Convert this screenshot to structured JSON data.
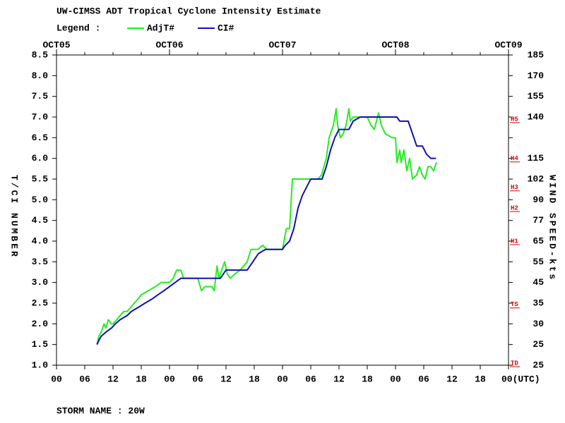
{
  "chart_data": {
    "type": "line",
    "title": "UW-CIMSS ADT Tropical Cyclone Intensity Estimate",
    "legend_label": "Legend :",
    "ylabel": "T/CI NUMBER",
    "y2label": "WIND SPEED-kts",
    "footer": "STORM NAME : 20W",
    "xlim": [
      0,
      96
    ],
    "xticks": [
      {
        "value": 0,
        "label": "00"
      },
      {
        "value": 6,
        "label": "06"
      },
      12,
      18,
      {
        "value": 24,
        "label": "00"
      },
      {
        "value": 30,
        "label": "06"
      },
      {
        "value": 36,
        "label": "12"
      },
      {
        "value": 42,
        "label": "18"
      },
      {
        "value": 48,
        "label": "00"
      },
      {
        "value": 54,
        "label": "06"
      },
      {
        "value": 60,
        "label": "12"
      },
      {
        "value": 66,
        "label": "18"
      },
      {
        "value": 72,
        "label": "00"
      },
      {
        "value": 78,
        "label": "06"
      },
      {
        "value": 84,
        "label": "12"
      },
      {
        "value": 90,
        "label": "18"
      },
      {
        "value": 96,
        "label": "00(UTC)"
      }
    ],
    "top_ticks": [
      {
        "value": 0,
        "label": "OCT05"
      },
      {
        "value": 24,
        "label": "OCT06"
      },
      {
        "value": 48,
        "label": "OCT07"
      },
      {
        "value": 72,
        "label": "OCT08"
      },
      {
        "value": 96,
        "label": "OCT09"
      }
    ],
    "ylim": [
      1.0,
      8.5
    ],
    "yticks": [
      {
        "value": 1.0,
        "label": "1.0"
      },
      1.5,
      {
        "value": 2.0,
        "label": "2.0"
      },
      2.5,
      {
        "value": 3.0,
        "label": "3.0"
      },
      3.5,
      {
        "value": 4.0,
        "label": "4.0"
      },
      4.5,
      {
        "value": 5.0,
        "label": "5.0"
      },
      5.5,
      {
        "value": 6.0,
        "label": "6.0"
      },
      6.5,
      {
        "value": 7.0,
        "label": "7.0"
      },
      7.5,
      {
        "value": 8.0,
        "label": "8.0"
      },
      8.5
    ],
    "wind_labels": [
      25,
      25,
      30,
      35,
      45,
      55,
      65,
      77,
      90,
      102,
      115,
      null,
      140,
      155,
      170,
      185
    ],
    "category_marks": [
      {
        "label": "TD",
        "value": 1.05
      },
      {
        "label": "TS",
        "value": 2.47
      },
      {
        "label": "H1",
        "value": 4.0
      },
      {
        "label": "H2",
        "value": 4.8
      },
      {
        "label": "H3",
        "value": 5.3
      },
      {
        "label": "H4",
        "value": 6.0
      },
      {
        "label": "H5",
        "value": 6.95
      }
    ],
    "series": [
      {
        "name": "AdjT#",
        "color": "#22ee22",
        "x": [
          8.6,
          9.0,
          9.5,
          10.1,
          10.5,
          11.0,
          11.6,
          12.0,
          12.8,
          13.5,
          14.3,
          15.0,
          15.8,
          16.5,
          17.3,
          18.0,
          19.5,
          21.0,
          22.2,
          24.0,
          24.8,
          25.5,
          26.4,
          27.0,
          27.8,
          30.0,
          30.8,
          31.5,
          33.0,
          33.5,
          34.1,
          34.5,
          35.1,
          35.7,
          36.3,
          36.9,
          37.8,
          39.0,
          40.5,
          41.3,
          42.8,
          43.8,
          44.7,
          48.0,
          48.8,
          49.5,
          50.1,
          52.5,
          55.5,
          56.3,
          57.3,
          57.9,
          58.8,
          59.4,
          59.7,
          60.3,
          60.9,
          61.5,
          62.1,
          62.4,
          63.0,
          66.0,
          66.8,
          67.5,
          68.4,
          69.0,
          69.8,
          71.3,
          72.0,
          72.3,
          72.9,
          73.2,
          73.8,
          74.4,
          75.0,
          75.6,
          76.5,
          77.1,
          77.7,
          78.3,
          78.9,
          79.5,
          80.1,
          80.7
        ],
        "values": [
          1.5,
          1.7,
          1.8,
          2.0,
          1.9,
          2.1,
          2.0,
          2.0,
          2.1,
          2.2,
          2.3,
          2.3,
          2.4,
          2.5,
          2.6,
          2.7,
          2.8,
          2.9,
          3.0,
          3.0,
          3.1,
          3.3,
          3.3,
          3.1,
          3.1,
          3.1,
          2.8,
          2.9,
          2.9,
          2.8,
          3.4,
          3.1,
          3.3,
          3.5,
          3.2,
          3.1,
          3.2,
          3.3,
          3.5,
          3.8,
          3.8,
          3.9,
          3.8,
          3.8,
          4.3,
          4.3,
          5.5,
          5.5,
          5.5,
          5.6,
          6.0,
          6.5,
          6.8,
          7.2,
          6.8,
          6.5,
          6.6,
          6.8,
          7.2,
          6.9,
          7.0,
          7.0,
          6.8,
          6.7,
          7.1,
          6.8,
          6.6,
          6.5,
          6.5,
          5.9,
          6.2,
          5.9,
          6.2,
          5.7,
          6.0,
          5.5,
          5.6,
          5.8,
          5.6,
          5.5,
          5.8,
          5.8,
          5.7,
          5.9
        ]
      },
      {
        "name": "CI#",
        "color": "#1010b0",
        "x": [
          8.6,
          9.0,
          9.5,
          10.5,
          11.7,
          12.5,
          13.5,
          15.0,
          15.9,
          17.4,
          18.8,
          20.3,
          21.5,
          22.8,
          24.0,
          25.2,
          26.4,
          34.8,
          36.0,
          40.5,
          41.7,
          42.9,
          44.4,
          48.0,
          48.6,
          49.5,
          50.4,
          51.3,
          52.2,
          53.1,
          54.0,
          56.4,
          57.3,
          58.2,
          59.1,
          60.0,
          62.1,
          63.0,
          64.5,
          72.3,
          72.9,
          74.7,
          75.6,
          76.5,
          77.7,
          78.6,
          79.5,
          80.6
        ],
        "values": [
          1.5,
          1.6,
          1.7,
          1.8,
          1.9,
          2.0,
          2.1,
          2.2,
          2.3,
          2.4,
          2.5,
          2.6,
          2.7,
          2.8,
          2.9,
          3.0,
          3.1,
          3.1,
          3.3,
          3.3,
          3.5,
          3.7,
          3.8,
          3.8,
          3.9,
          4.0,
          4.3,
          4.8,
          5.1,
          5.3,
          5.5,
          5.5,
          5.8,
          6.2,
          6.5,
          6.7,
          6.7,
          6.9,
          7.0,
          7.0,
          6.9,
          6.9,
          6.6,
          6.3,
          6.3,
          6.1,
          6.0,
          6.0
        ]
      }
    ]
  }
}
